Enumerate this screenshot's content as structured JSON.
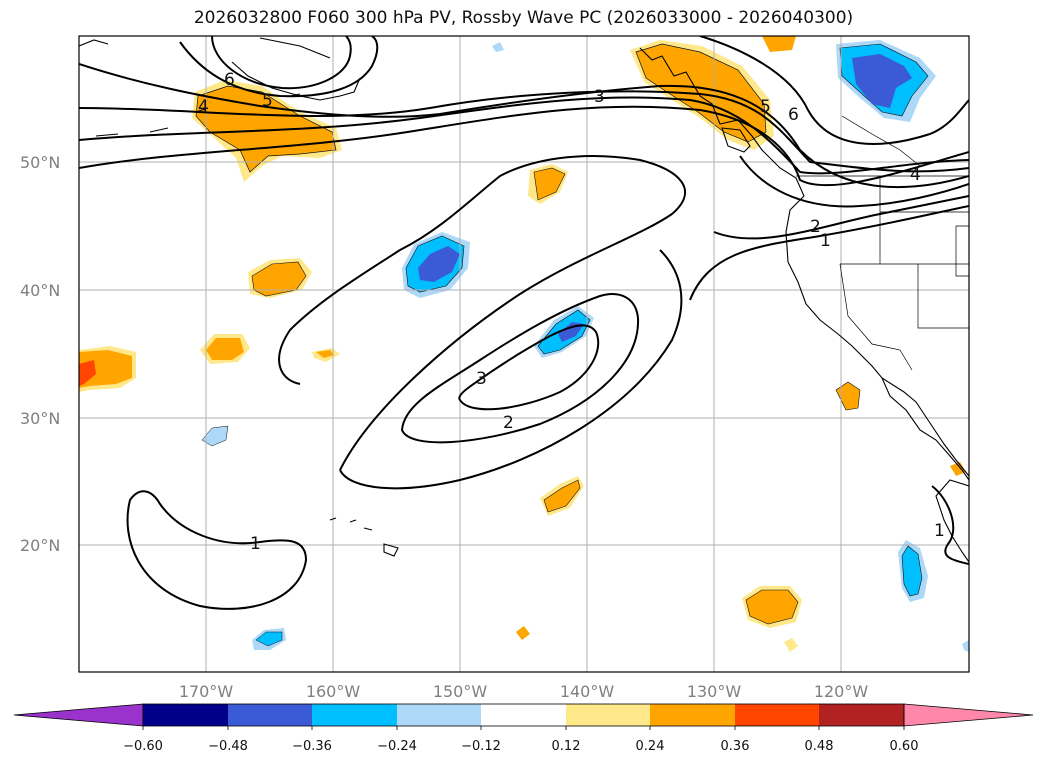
{
  "title": "2026032800 F060 300 hPa PV, Rossby Wave PC (2026033000 - 2026040300)",
  "map": {
    "extent": {
      "lon_min": -180,
      "lon_max": -110,
      "lat_min": 10,
      "lat_max": 60
    },
    "lat_ticks": [
      "50°N",
      "40°N",
      "30°N",
      "20°N"
    ],
    "lon_ticks": [
      "170°W",
      "160°W",
      "150°W",
      "140°W",
      "130°W",
      "120°W"
    ],
    "contour_labels": [
      "6",
      "4",
      "5",
      "3",
      "5",
      "6",
      "4",
      "2",
      "1",
      "3",
      "2",
      "1",
      "1"
    ]
  },
  "colorbar": {
    "labels": [
      "−0.60",
      "−0.48",
      "−0.36",
      "−0.24",
      "−0.12",
      "0.12",
      "0.24",
      "0.36",
      "0.48",
      "0.60"
    ],
    "colors": {
      "under": "#9933cc",
      "b1": "#00008b",
      "b2": "#3b5bd6",
      "b3": "#00bfff",
      "b4": "#add8f7",
      "b5": "#ffffff",
      "b6": "#ffe88a",
      "b7": "#ffa500",
      "b8": "#ff4500",
      "b9": "#b22222",
      "over": "#ff88aa"
    }
  }
}
